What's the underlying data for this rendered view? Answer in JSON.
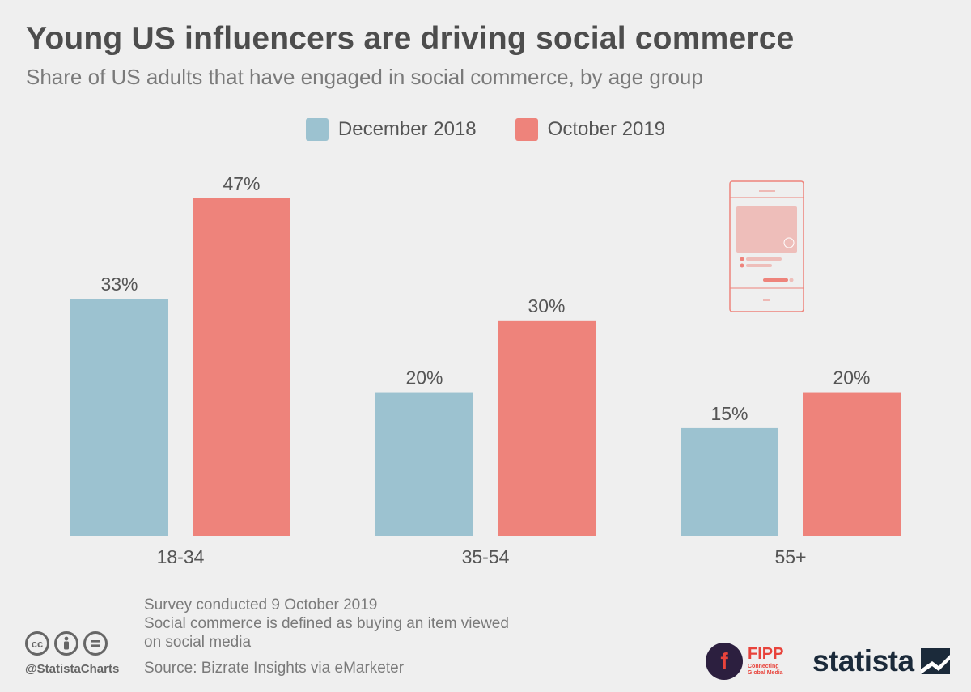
{
  "title": "Young US influencers are driving social commerce",
  "subtitle": "Share of US adults that have engaged in social commerce, by age group",
  "legend": {
    "series_a": "December 2018",
    "series_b": "October 2019"
  },
  "colors": {
    "series_a": "#9cc2d0",
    "series_b": "#ee837b",
    "phone_icon": "#ee837b"
  },
  "chart_data": {
    "type": "bar",
    "categories": [
      "18-34",
      "35-54",
      "55+"
    ],
    "series": [
      {
        "name": "December 2018",
        "values": [
          33,
          20,
          15
        ],
        "labels": [
          "33%",
          "20%",
          "15%"
        ]
      },
      {
        "name": "October 2019",
        "values": [
          47,
          30,
          20
        ],
        "labels": [
          "47%",
          "30%",
          "20%"
        ]
      }
    ],
    "title": "Young US influencers are driving social commerce",
    "subtitle": "Share of US adults that have engaged in social commerce, by age group",
    "xlabel": "",
    "ylabel": "",
    "ylim": [
      0,
      47
    ],
    "grid": false,
    "legend_position": "top-center"
  },
  "footer": {
    "note_1": "Survey conducted 9 October 2019",
    "note_2": "Social commerce is defined as buying an item viewed on social media",
    "source": "Source: Bizrate Insights via eMarketer",
    "handle": "@StatistaCharts",
    "cc_icons": [
      "cc-icon",
      "by-icon",
      "nd-icon"
    ],
    "fipp_name": "FIPP",
    "fipp_tagline": "Connecting Global Media",
    "statista_name": "statista"
  }
}
